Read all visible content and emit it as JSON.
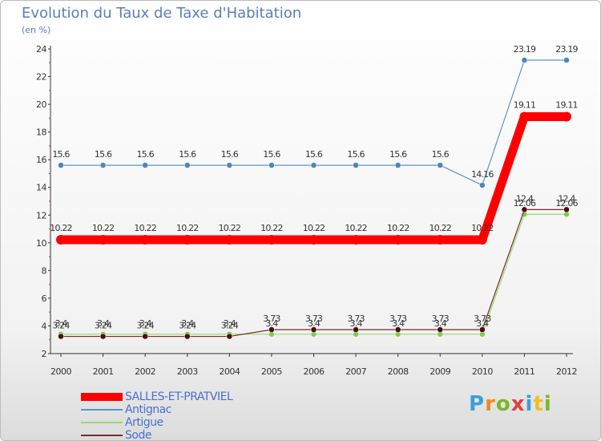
{
  "chart_data": {
    "type": "line",
    "title": "Evolution du Taux de Taxe d'Habitation",
    "subtitle": "(en %)",
    "x": [
      "2000",
      "2001",
      "2002",
      "2003",
      "2004",
      "2005",
      "2006",
      "2007",
      "2008",
      "2009",
      "2010",
      "2011",
      "2012"
    ],
    "ylim": [
      2,
      24
    ],
    "yticks": [
      2,
      4,
      6,
      8,
      10,
      12,
      14,
      16,
      18,
      20,
      22,
      24
    ],
    "series": [
      {
        "name": "SALLES-ET-PRATVIEL",
        "color": "#ff0000",
        "values": [
          10.22,
          10.22,
          10.22,
          10.22,
          10.22,
          10.22,
          10.22,
          10.22,
          10.22,
          10.22,
          10.22,
          19.11,
          19.11
        ],
        "labels": [
          "10.22",
          "10.22",
          "10.22",
          "10.22",
          "10.22",
          "10.22",
          "10.22",
          "10.22",
          "10.22",
          "10.22",
          "10.22",
          "19.11",
          "19.11"
        ]
      },
      {
        "name": "Antignac",
        "color": "#5b95c8",
        "values": [
          15.6,
          15.6,
          15.6,
          15.6,
          15.6,
          15.6,
          15.6,
          15.6,
          15.6,
          15.6,
          14.16,
          23.19,
          23.19
        ],
        "labels": [
          "15.6",
          "15.6",
          "15.6",
          "15.6",
          "15.6",
          "15.6",
          "15.6",
          "15.6",
          "15.6",
          "15.6",
          "14.16",
          "23.19",
          "23.19"
        ]
      },
      {
        "name": "Artigue",
        "color": "#94dc6a",
        "values": [
          3.4,
          3.4,
          3.4,
          3.4,
          3.4,
          3.4,
          3.4,
          3.4,
          3.4,
          3.4,
          3.4,
          12.06,
          12.06
        ],
        "labels": [
          "3.4",
          "3.4",
          "3.4",
          "3.4",
          "3.4",
          "3.4",
          "3.4",
          "3.4",
          "3.4",
          "3.4",
          "3.4",
          "12.06",
          "12.06"
        ]
      },
      {
        "name": "Sode",
        "color": "#7a2a2a",
        "values": [
          3.24,
          3.24,
          3.24,
          3.24,
          3.24,
          3.73,
          3.73,
          3.73,
          3.73,
          3.73,
          3.73,
          12.4,
          12.4
        ],
        "labels": [
          "3.24",
          "3.24",
          "3.24",
          "3.24",
          "3.24",
          "3.73",
          "3.73",
          "3.73",
          "3.73",
          "3.73",
          "3.73",
          "12.4",
          "12.4"
        ]
      }
    ]
  },
  "logo": {
    "letters": [
      "P",
      "r",
      "o",
      "x",
      "i",
      "t",
      "i"
    ],
    "colors": [
      "#3aa0d8",
      "#f08a1c",
      "#7ab82a",
      "#e04040",
      "#3aa0d8",
      "#f0c020",
      "#7ab82a"
    ]
  }
}
